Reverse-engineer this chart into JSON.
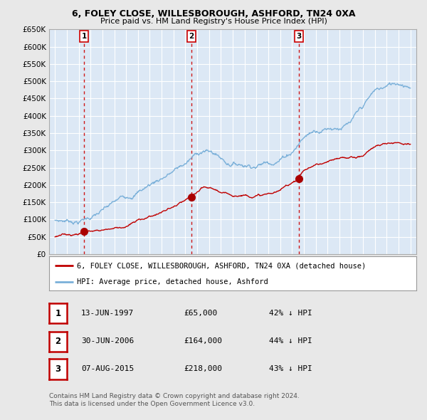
{
  "title": "6, FOLEY CLOSE, WILLESBOROUGH, ASHFORD, TN24 0XA",
  "subtitle": "Price paid vs. HM Land Registry's House Price Index (HPI)",
  "transactions": [
    {
      "date": 1997.45,
      "price": 65000,
      "label": "1"
    },
    {
      "date": 2006.5,
      "price": 164000,
      "label": "2"
    },
    {
      "date": 2015.6,
      "price": 218000,
      "label": "3"
    }
  ],
  "transaction_dates_str": [
    "13-JUN-1997",
    "30-JUN-2006",
    "07-AUG-2015"
  ],
  "transaction_prices_str": [
    "£65,000",
    "£164,000",
    "£218,000"
  ],
  "transaction_hpi_str": [
    "42% ↓ HPI",
    "44% ↓ HPI",
    "43% ↓ HPI"
  ],
  "hpi_line_color": "#7ab0d9",
  "price_line_color": "#c00000",
  "vline_color": "#cc0000",
  "dot_color": "#aa0000",
  "ylim_max": 650000,
  "ytick_values": [
    0,
    50000,
    100000,
    150000,
    200000,
    250000,
    300000,
    350000,
    400000,
    450000,
    500000,
    550000,
    600000,
    650000
  ],
  "ytick_labels": [
    "£0",
    "£50K",
    "£100K",
    "£150K",
    "£200K",
    "£250K",
    "£300K",
    "£350K",
    "£400K",
    "£450K",
    "£500K",
    "£550K",
    "£600K",
    "£650K"
  ],
  "legend_label_price": "6, FOLEY CLOSE, WILLESBOROUGH, ASHFORD, TN24 0XA (detached house)",
  "legend_label_hpi": "HPI: Average price, detached house, Ashford",
  "footer1": "Contains HM Land Registry data © Crown copyright and database right 2024.",
  "footer2": "This data is licensed under the Open Government Licence v3.0.",
  "background_color": "#e8e8e8",
  "plot_background": "#dce8f5",
  "grid_color": "#ffffff"
}
